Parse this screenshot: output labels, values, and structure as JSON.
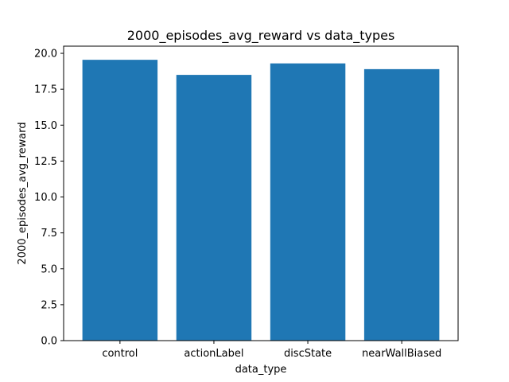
{
  "chart_data": {
    "type": "bar",
    "title": "2000_episodes_avg_reward vs data_types",
    "xlabel": "data_type",
    "ylabel": "2000_episodes_avg_reward",
    "categories": [
      "control",
      "actionLabel",
      "discState",
      "nearWallBiased"
    ],
    "values": [
      19.55,
      18.5,
      19.3,
      18.9
    ],
    "ylim": [
      0,
      20.5
    ],
    "yticks": [
      "0.0",
      "2.5",
      "5.0",
      "7.5",
      "10.0",
      "12.5",
      "15.0",
      "17.5",
      "20.0"
    ],
    "bar_color": "#1f77b4",
    "grid": false
  }
}
